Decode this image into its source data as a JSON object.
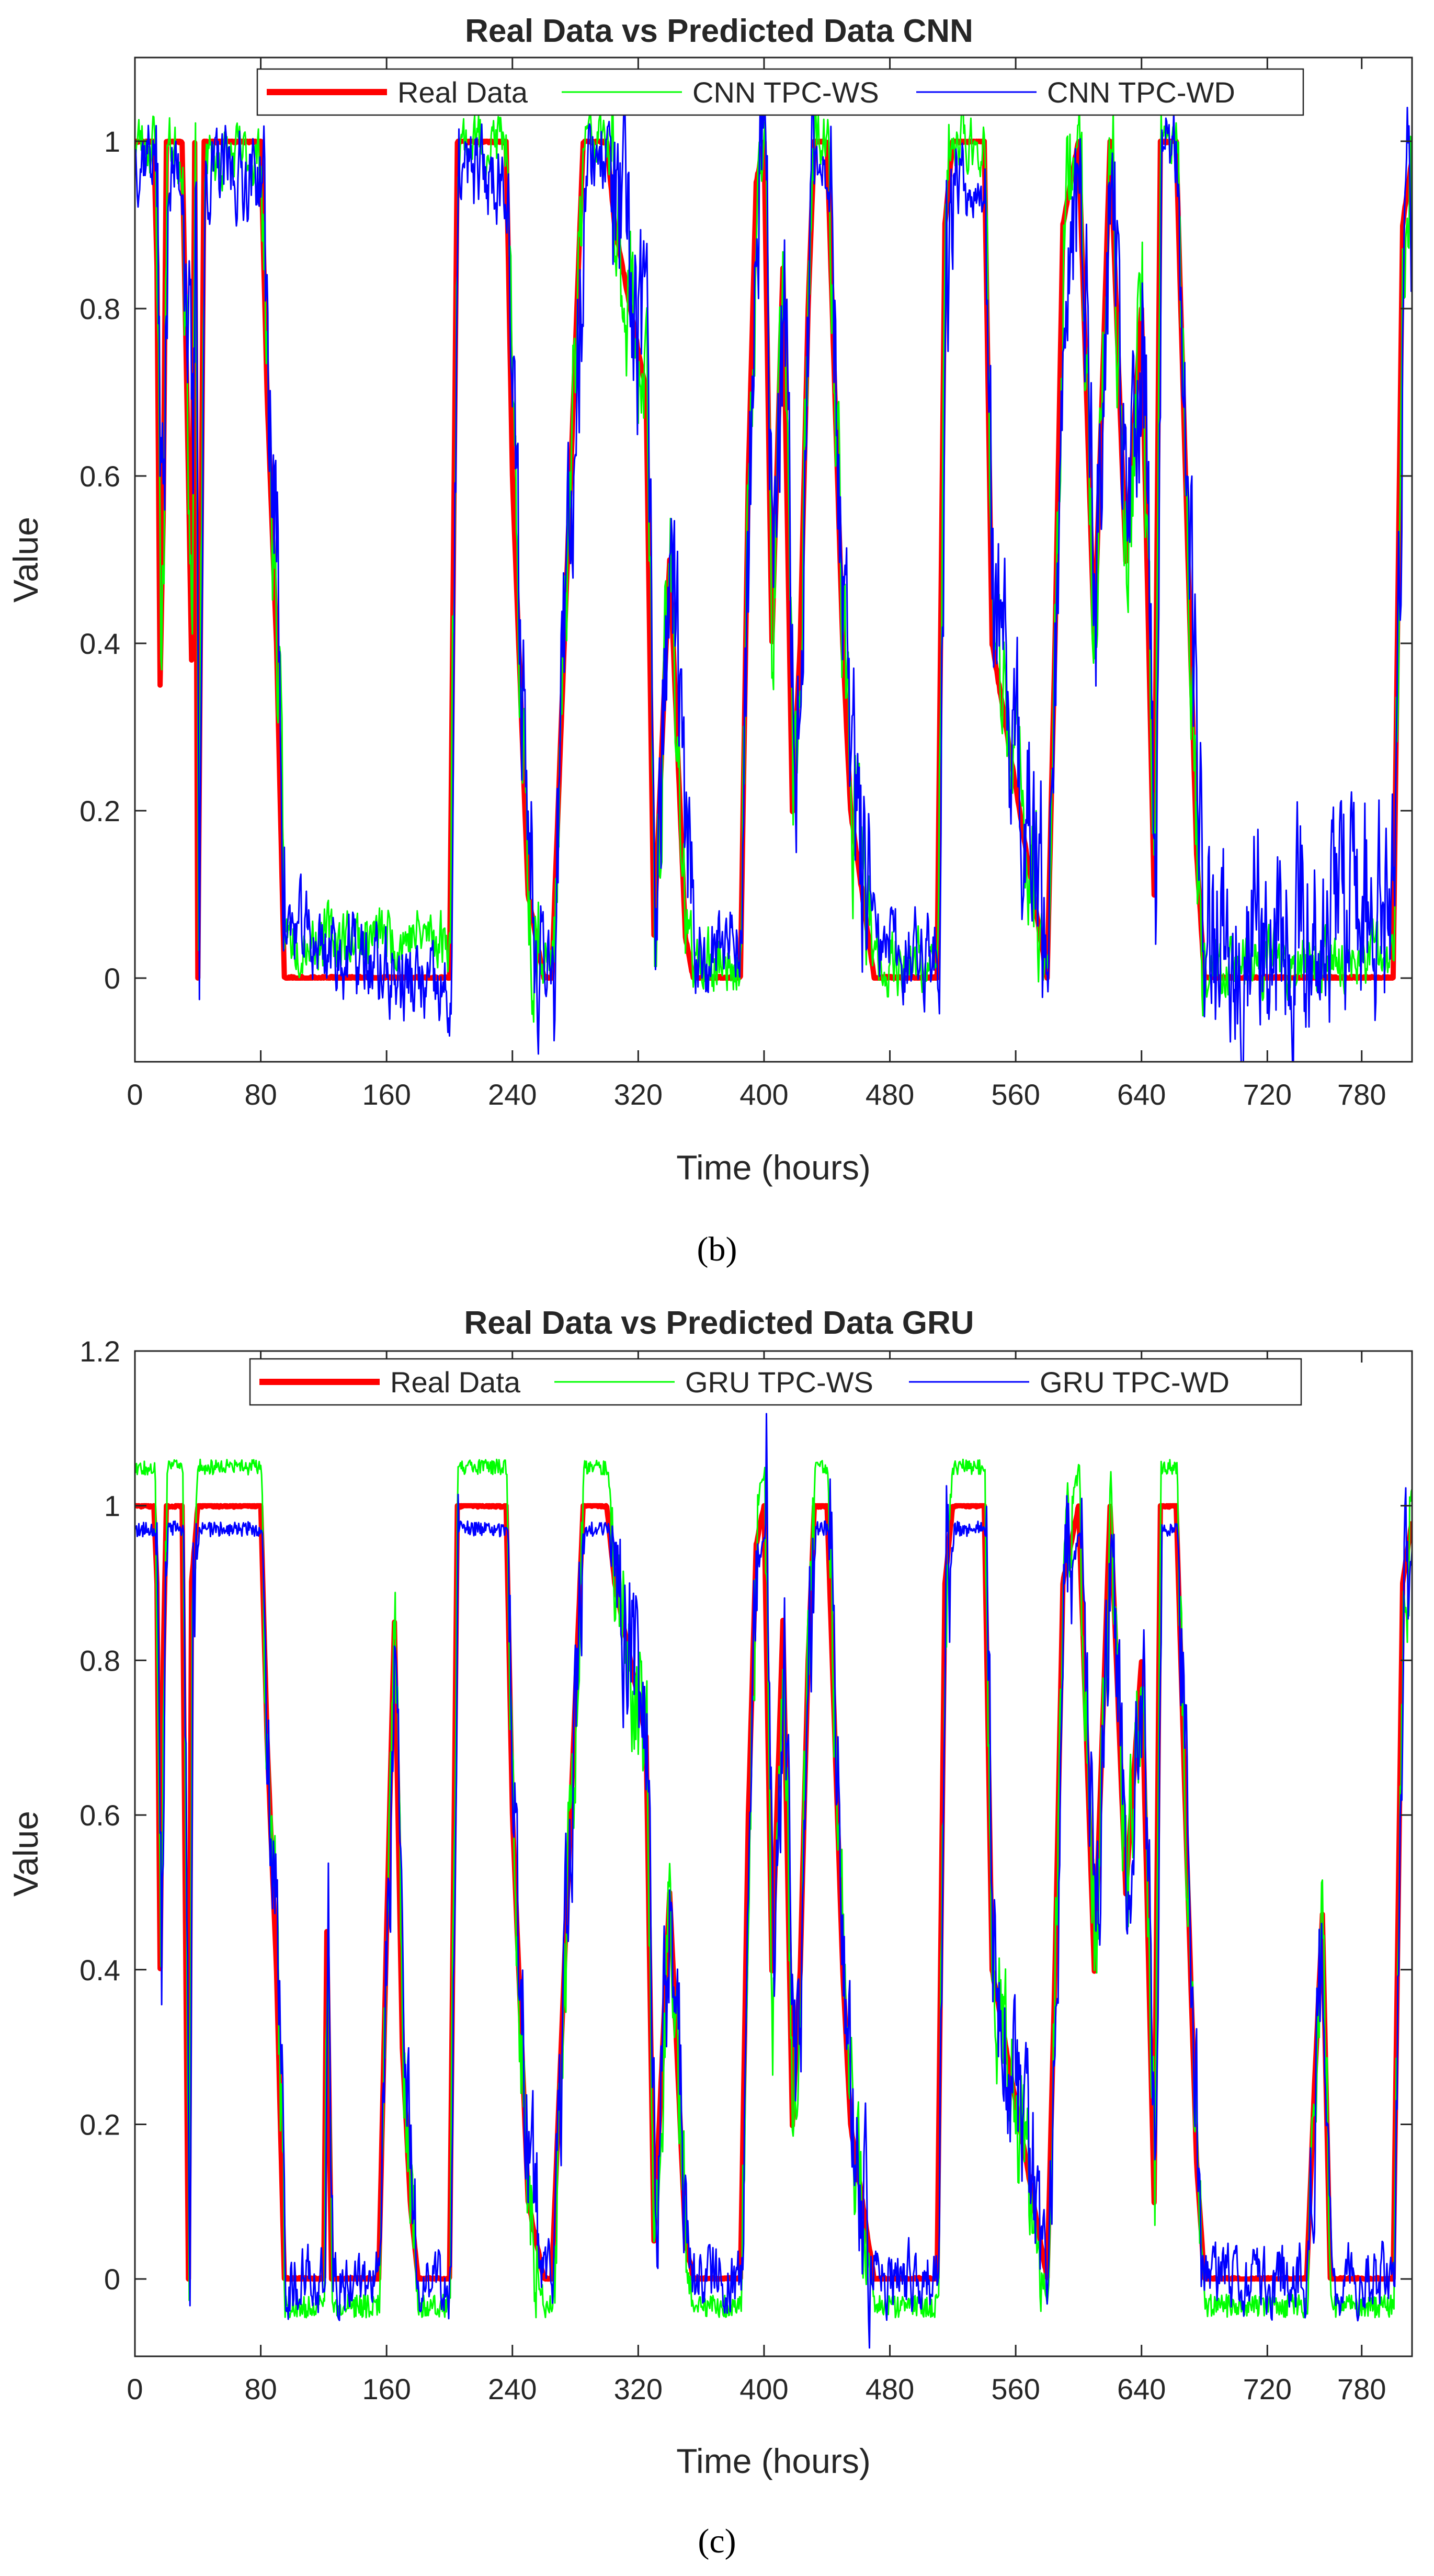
{
  "chart_data": [
    {
      "type": "line",
      "title": "Real Data vs Predicted Data CNN",
      "xlabel": "Time (hours)",
      "ylabel": "Value",
      "caption": "(b)",
      "xlim": [
        0,
        812
      ],
      "ylim": [
        -0.1,
        1.1
      ],
      "xticks": [
        0,
        80,
        160,
        240,
        320,
        400,
        480,
        560,
        640,
        720,
        780
      ],
      "yticks": [
        0,
        0.2,
        0.4,
        0.6,
        0.8,
        1
      ],
      "ytick_labels": [
        "0",
        "0.2",
        "0.4",
        "0.6",
        "0.8",
        "1"
      ],
      "legend_position": "top-center",
      "series": [
        {
          "name": "Real Data",
          "color": "#ff0000",
          "style": "thick",
          "seed": 11,
          "noise": 0.01,
          "clip": [
            0,
            1
          ],
          "x": [
            0,
            12,
            14,
            16,
            18,
            20,
            30,
            34,
            36,
            38,
            40,
            44,
            80,
            84,
            90,
            95,
            200,
            205,
            236,
            240,
            250,
            260,
            265,
            285,
            290,
            300,
            305,
            325,
            330,
            340,
            350,
            355,
            385,
            390,
            395,
            400,
            405,
            412,
            418,
            423,
            428,
            432,
            440,
            450,
            455,
            470,
            480,
            510,
            515,
            520,
            540,
            545,
            580,
            585,
            590,
            600,
            610,
            620,
            630,
            640,
            648,
            652,
            662,
            668,
            675,
            680,
            800,
            803,
            806,
            812
          ],
          "y": [
            1,
            1,
            0.85,
            0.35,
            0.55,
            1,
            1,
            0.6,
            0.38,
            1,
            0,
            1,
            1,
            0.7,
            0.4,
            0,
            0,
            1,
            1,
            0.6,
            0.1,
            0,
            0,
            1,
            1,
            1,
            0.9,
            0.7,
            0.05,
            0.5,
            0.05,
            0,
            0,
            0.6,
            0.95,
            1,
            0.4,
            0.85,
            0.2,
            0.4,
            0.8,
            1,
            1,
            0.4,
            0.2,
            0,
            0,
            0,
            0.9,
            1,
            1,
            0.4,
            0,
            0.4,
            0.9,
            1,
            0.4,
            1,
            0.5,
            0.8,
            0.1,
            1,
            1,
            0.6,
            0.15,
            0,
            0,
            0.45,
            0.9,
            0.98
          ]
        },
        {
          "name": "CNN TPC-WS",
          "color": "#00ff00",
          "style": "thin",
          "seed": 23,
          "noise": 0.05,
          "shift": 0.5,
          "offset": 0.0,
          "x": [
            0,
            12,
            14,
            16,
            18,
            20,
            30,
            34,
            36,
            38,
            40,
            44,
            80,
            84,
            90,
            95,
            200,
            205,
            236,
            240,
            250,
            260,
            265,
            285,
            290,
            300,
            305,
            325,
            330,
            340,
            350,
            355,
            385,
            390,
            395,
            400,
            405,
            412,
            418,
            423,
            428,
            432,
            440,
            450,
            455,
            470,
            480,
            510,
            515,
            520,
            540,
            545,
            580,
            585,
            590,
            600,
            610,
            620,
            630,
            640,
            648,
            652,
            662,
            668,
            675,
            680,
            800,
            803,
            806,
            812
          ],
          "y": [
            1,
            1,
            0.85,
            0.4,
            0.55,
            1,
            0.98,
            0.6,
            0.4,
            0.98,
            0.05,
            0.98,
            0.98,
            0.7,
            0.4,
            0.05,
            0.05,
            1,
            1,
            0.6,
            0.1,
            0.02,
            0.02,
            1,
            1,
            1,
            0.9,
            0.7,
            0.05,
            0.5,
            0.05,
            0.02,
            0.02,
            0.6,
            0.95,
            1,
            0.4,
            0.85,
            0.2,
            0.4,
            0.8,
            1,
            1,
            0.4,
            0.2,
            0.02,
            0.02,
            0.02,
            0.9,
            1,
            1,
            0.4,
            0.02,
            0.4,
            0.9,
            1,
            0.4,
            1,
            0.5,
            0.8,
            0.1,
            1,
            1,
            0.6,
            0.15,
            0.02,
            0.02,
            0.45,
            0.9,
            0.95
          ]
        },
        {
          "name": "CNN TPC-WD",
          "color": "#0000ff",
          "style": "thin",
          "seed": 37,
          "noise": 0.07,
          "shift": 1.0,
          "offset": 0.01,
          "x": [
            0,
            12,
            14,
            16,
            18,
            20,
            30,
            34,
            36,
            38,
            40,
            44,
            80,
            84,
            90,
            95,
            200,
            205,
            236,
            240,
            250,
            260,
            265,
            285,
            290,
            300,
            305,
            325,
            330,
            340,
            350,
            355,
            385,
            390,
            395,
            400,
            405,
            412,
            418,
            423,
            428,
            432,
            440,
            450,
            455,
            470,
            480,
            510,
            515,
            520,
            540,
            545,
            580,
            585,
            590,
            600,
            610,
            620,
            630,
            640,
            648,
            652,
            662,
            668,
            675,
            680,
            800,
            803,
            806,
            812
          ],
          "y": [
            0.98,
            0.98,
            0.8,
            0.55,
            0.6,
            0.95,
            0.95,
            0.7,
            0.55,
            0.95,
            0.1,
            0.95,
            0.95,
            0.7,
            0.45,
            0.05,
            -0.04,
            0.95,
            0.95,
            0.6,
            0.15,
            0.03,
            0.03,
            0.95,
            0.98,
            0.98,
            0.9,
            0.7,
            0.1,
            0.5,
            0.1,
            0.02,
            0.05,
            0.6,
            0.9,
            0.98,
            0.45,
            0.8,
            0.25,
            0.4,
            0.8,
            0.98,
            0.98,
            0.4,
            0.2,
            0.02,
            0.02,
            0.02,
            0.85,
            0.95,
            0.95,
            0.4,
            0.02,
            0.4,
            0.85,
            0.98,
            0.45,
            0.98,
            0.5,
            0.8,
            0.12,
            0.98,
            0.98,
            0.6,
            0.2,
            0.05,
            0.08,
            0.4,
            0.85,
            0.9
          ]
        }
      ]
    },
    {
      "type": "line",
      "title": "Real Data vs Predicted Data GRU",
      "xlabel": "Time (hours)",
      "ylabel": "Value",
      "caption": "(c)",
      "xlim": [
        0,
        812
      ],
      "ylim": [
        -0.1,
        1.2
      ],
      "xticks": [
        0,
        80,
        160,
        240,
        320,
        400,
        480,
        560,
        640,
        720,
        780
      ],
      "yticks": [
        0,
        0.2,
        0.4,
        0.6,
        0.8,
        1,
        1.2
      ],
      "ytick_labels": [
        "0",
        "0.2",
        "0.4",
        "0.6",
        "0.8",
        "1",
        "1.2"
      ],
      "legend_position": "top-center",
      "series": [
        {
          "name": "Real Data",
          "color": "#ff0000",
          "style": "thick",
          "seed": 51,
          "noise": 0.01,
          "clip": [
            0,
            1
          ],
          "x": [
            0,
            12,
            14,
            16,
            18,
            20,
            30,
            32,
            34,
            36,
            40,
            80,
            84,
            90,
            95,
            120,
            122,
            125,
            155,
            160,
            165,
            170,
            175,
            180,
            190,
            195,
            200,
            205,
            236,
            240,
            250,
            260,
            265,
            285,
            290,
            300,
            305,
            325,
            330,
            340,
            350,
            355,
            385,
            390,
            395,
            400,
            405,
            412,
            418,
            423,
            428,
            432,
            440,
            450,
            455,
            470,
            480,
            510,
            515,
            520,
            540,
            545,
            580,
            585,
            590,
            600,
            610,
            620,
            630,
            640,
            648,
            652,
            662,
            668,
            675,
            680,
            745,
            750,
            755,
            760,
            800,
            803,
            806,
            812
          ],
          "y": [
            1,
            1,
            0.9,
            0.4,
            0.8,
            1,
            1,
            0.5,
            0,
            0.9,
            1,
            1,
            0.7,
            0.4,
            0,
            0,
            0.45,
            0,
            0,
            0.45,
            0.85,
            0.3,
            0.1,
            0,
            0,
            0,
            0,
            1,
            1,
            0.6,
            0.1,
            0,
            0,
            1,
            1,
            1,
            0.9,
            0.7,
            0.05,
            0.5,
            0.05,
            0,
            0,
            0.6,
            0.95,
            1,
            0.4,
            0.85,
            0.2,
            0.4,
            0.8,
            1,
            1,
            0.4,
            0.2,
            0,
            0,
            0,
            0.9,
            1,
            1,
            0.4,
            0,
            0.4,
            0.9,
            1,
            0.4,
            1,
            0.5,
            0.8,
            0.1,
            1,
            1,
            0.6,
            0.15,
            0,
            0,
            0.25,
            0.47,
            0,
            0,
            0.45,
            0.9,
            0.98
          ]
        },
        {
          "name": "GRU TPC-WS",
          "color": "#00ff00",
          "style": "thin",
          "seed": 67,
          "noise": 0.05,
          "shift": 0.5,
          "overshoot": 0.05,
          "lowshift": -0.035,
          "x": [
            0,
            12,
            14,
            16,
            18,
            20,
            30,
            32,
            34,
            36,
            40,
            80,
            84,
            90,
            95,
            120,
            122,
            125,
            155,
            160,
            165,
            170,
            175,
            180,
            190,
            195,
            200,
            205,
            236,
            240,
            250,
            260,
            265,
            285,
            290,
            300,
            305,
            325,
            330,
            340,
            350,
            355,
            385,
            390,
            395,
            400,
            405,
            412,
            418,
            423,
            428,
            432,
            440,
            450,
            455,
            470,
            480,
            510,
            515,
            520,
            540,
            545,
            580,
            585,
            590,
            600,
            610,
            620,
            630,
            640,
            648,
            652,
            662,
            668,
            675,
            680,
            745,
            750,
            755,
            760,
            800,
            803,
            806,
            812
          ],
          "y": [
            1,
            1,
            0.9,
            0.4,
            0.8,
            1,
            1,
            0.5,
            0,
            0.9,
            1,
            1,
            0.7,
            0.4,
            0,
            0,
            0.45,
            0,
            0,
            0.45,
            0.85,
            0.3,
            0.1,
            0,
            0,
            0,
            0,
            1,
            1,
            0.6,
            0.1,
            0,
            0,
            1,
            1,
            1,
            0.9,
            0.7,
            0.05,
            0.5,
            0.05,
            0,
            0,
            0.6,
            0.95,
            1,
            0.4,
            0.85,
            0.2,
            0.4,
            0.8,
            1,
            1,
            0.4,
            0.2,
            0,
            0,
            0,
            0.9,
            1,
            1,
            0.4,
            0,
            0.4,
            0.9,
            1,
            0.4,
            1,
            0.5,
            0.8,
            0.1,
            1,
            1,
            0.6,
            0.15,
            0,
            0,
            0.25,
            0.47,
            0,
            0,
            0.45,
            0.9,
            0.98
          ]
        },
        {
          "name": "GRU TPC-WD",
          "color": "#0000ff",
          "style": "thin",
          "seed": 79,
          "noise": 0.06,
          "shift": 1.0,
          "overshoot": -0.03,
          "lowshift": 0.0,
          "x": [
            0,
            12,
            14,
            16,
            18,
            20,
            30,
            32,
            34,
            36,
            40,
            80,
            84,
            90,
            95,
            120,
            122,
            125,
            155,
            160,
            165,
            170,
            175,
            180,
            190,
            195,
            200,
            205,
            236,
            240,
            250,
            260,
            265,
            285,
            290,
            300,
            305,
            325,
            330,
            340,
            350,
            355,
            385,
            390,
            395,
            400,
            405,
            412,
            418,
            423,
            428,
            432,
            440,
            450,
            455,
            470,
            480,
            510,
            515,
            520,
            540,
            545,
            580,
            585,
            590,
            600,
            610,
            620,
            630,
            640,
            648,
            652,
            662,
            668,
            675,
            680,
            745,
            750,
            755,
            760,
            800,
            803,
            806,
            812
          ],
          "y": [
            1,
            1,
            0.9,
            0.4,
            0.8,
            1,
            1,
            0.5,
            0,
            0.9,
            1,
            1,
            0.7,
            0.4,
            0,
            0,
            0.45,
            0,
            0,
            0.45,
            0.85,
            0.3,
            0.1,
            0,
            0,
            0,
            0,
            1,
            1,
            0.6,
            0.1,
            0,
            0,
            1,
            1,
            1,
            0.9,
            0.7,
            0.05,
            0.5,
            0.05,
            0,
            0,
            0.6,
            0.95,
            1,
            0.4,
            0.85,
            0.2,
            0.4,
            0.8,
            1,
            1,
            0.4,
            0.2,
            0,
            0,
            0,
            0.9,
            1,
            1,
            0.4,
            0,
            0.4,
            0.9,
            1,
            0.4,
            1,
            0.5,
            0.8,
            0.1,
            1,
            1,
            0.6,
            0.15,
            0,
            0,
            0.25,
            0.47,
            0,
            0,
            0.45,
            0.9,
            0.98
          ]
        }
      ]
    }
  ]
}
